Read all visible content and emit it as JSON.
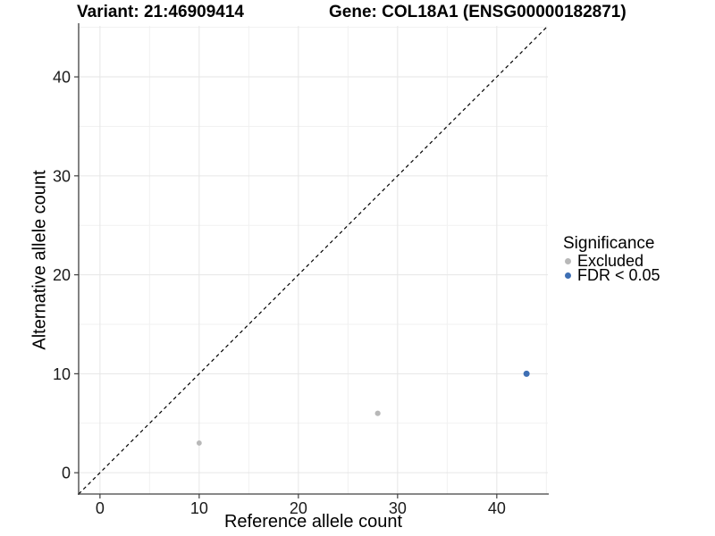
{
  "titles": {
    "left": "Variant: 21:46909414",
    "right": "Gene: COL18A1 (ENSG00000182871)"
  },
  "chart_data": {
    "type": "scatter",
    "title_left": "Variant: 21:46909414",
    "title_right": "Gene: COL18A1 (ENSG00000182871)",
    "xlabel": "Reference allele count",
    "ylabel": "Alternative allele count",
    "xlim": [
      -2.15,
      45.15
    ],
    "ylim": [
      -2.15,
      45.15
    ],
    "xticks": [
      0,
      10,
      20,
      30,
      40
    ],
    "yticks": [
      0,
      10,
      20,
      30,
      40
    ],
    "minor_ticks": [
      5,
      15,
      25,
      35,
      45
    ],
    "grid": true,
    "legend": {
      "title": "Significance",
      "position": "right"
    },
    "series": [
      {
        "name": "Excluded",
        "color": "#b8b8b8"
      },
      {
        "name": "FDR < 0.05",
        "color": "#3e6fb4"
      }
    ],
    "points": [
      {
        "x": 10,
        "y": 3,
        "series": "Excluded",
        "r": 2.9
      },
      {
        "x": 28,
        "y": 6,
        "series": "Excluded",
        "r": 3.1
      },
      {
        "x": 43,
        "y": 10,
        "series": "FDR < 0.05",
        "r": 3.5
      }
    ],
    "identity_line": {
      "style": "dashed",
      "color": "#000000"
    },
    "colors": {
      "grid_major": "#e6e6e6",
      "grid_minor": "#f1f1f1",
      "axis": "#404040",
      "tick_text": "#1a1a1a",
      "background": "#ffffff"
    }
  }
}
